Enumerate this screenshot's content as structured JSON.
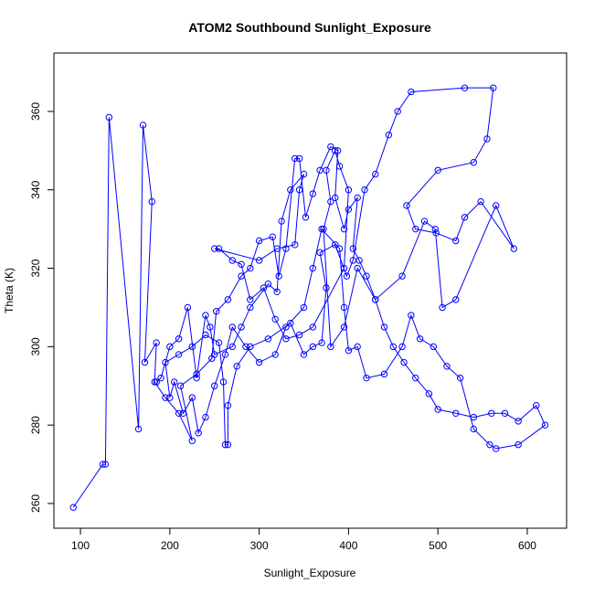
{
  "chart_data": {
    "type": "line",
    "title": "ATOM2 Southbound Sunlight_Exposure",
    "x_label": "Sunlight_Exposure",
    "y_label": "Theta (K)",
    "color": "#0000ff",
    "markers": "open-circle",
    "x": [
      92,
      125,
      128,
      132,
      165,
      170,
      180,
      172,
      185,
      183,
      195,
      210,
      225,
      212,
      230,
      247,
      252,
      265,
      280,
      290,
      300,
      315,
      322,
      330,
      340,
      345,
      352,
      360,
      368,
      380,
      388,
      385,
      395,
      400,
      410,
      405,
      412,
      420,
      430,
      440,
      450,
      462,
      475,
      490,
      500,
      520,
      540,
      560,
      575,
      590,
      610,
      620,
      590,
      565,
      558,
      540,
      525,
      510,
      495,
      480,
      470,
      460,
      440,
      420,
      410,
      400,
      395,
      390,
      370,
      360,
      350,
      330,
      318,
      300,
      285,
      270,
      262,
      250,
      240,
      232,
      225,
      215,
      205,
      200,
      195,
      210,
      225,
      240,
      255,
      260,
      262,
      265,
      265,
      275,
      290,
      310,
      335,
      350,
      360,
      370,
      375,
      368,
      385,
      398,
      405,
      418,
      430,
      445,
      455,
      470,
      530,
      562,
      555,
      540,
      500,
      465,
      475,
      498,
      520,
      530,
      548,
      585,
      565,
      520,
      505,
      497,
      485,
      460,
      430,
      410,
      395,
      380,
      372,
      380,
      375,
      385,
      390,
      400,
      395,
      360,
      345,
      330,
      318,
      305,
      290,
      280,
      270,
      255,
      250,
      300,
      320,
      340,
      345,
      350,
      335,
      325,
      320,
      310,
      290,
      280,
      270,
      250,
      245,
      240,
      230,
      220,
      210,
      200,
      190,
      185
    ],
    "values": [
      259,
      270,
      270,
      358.5,
      279,
      356.5,
      337,
      296,
      301,
      291,
      287,
      283,
      276,
      290,
      293,
      297,
      309,
      312,
      318,
      320,
      327,
      328,
      318,
      325,
      348,
      348,
      333,
      339,
      345,
      351,
      350,
      338,
      330,
      335,
      338,
      325,
      322,
      318,
      312,
      305,
      300,
      296,
      292,
      288,
      284,
      283,
      282,
      283,
      283,
      281,
      285,
      280,
      275,
      274,
      275,
      279,
      292,
      295,
      300,
      302,
      308,
      300,
      293,
      292,
      300,
      299,
      310,
      325,
      330,
      320,
      310,
      305,
      298,
      296,
      300,
      305,
      298,
      290,
      282,
      278,
      287,
      283,
      291,
      287,
      296,
      298,
      300,
      303,
      301,
      291,
      275,
      275,
      285,
      295,
      300,
      302,
      306,
      298,
      300,
      301,
      315,
      324,
      326,
      318,
      322,
      340,
      344,
      354,
      360,
      365,
      366,
      366,
      353,
      347,
      345,
      336,
      330,
      329,
      327,
      333,
      337,
      325,
      336,
      312,
      310,
      330,
      332,
      318,
      312,
      320,
      305,
      300,
      330,
      337,
      345,
      350,
      346,
      340,
      320,
      305,
      303,
      302,
      307,
      315,
      312,
      321,
      322,
      325,
      325,
      322,
      325,
      326,
      340,
      344,
      340,
      332,
      314,
      316,
      310,
      305,
      300,
      298,
      305,
      308,
      292,
      310,
      302,
      300,
      292,
      291
    ],
    "xlim": [
      70.3,
      644
    ],
    "ylim": [
      253.7,
      374.9
    ],
    "xticks": [
      100,
      200,
      300,
      400,
      500,
      600
    ],
    "yticks": [
      260,
      280,
      300,
      320,
      340,
      360
    ]
  }
}
